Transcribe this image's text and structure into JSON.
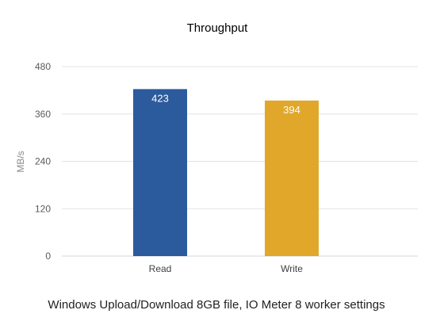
{
  "chart_data": {
    "type": "bar",
    "title": "Throughput",
    "caption": "Windows Upload/Download 8GB file, IO Meter 8 worker settings",
    "ylabel": "MB/s",
    "xlabel": "",
    "categories": [
      "Read",
      "Write"
    ],
    "values": [
      423,
      394
    ],
    "data_labels": [
      "423",
      "394"
    ],
    "ylim": [
      0,
      480
    ],
    "yticks": [
      0,
      120,
      240,
      360,
      480
    ],
    "colors": [
      "#2b5a9d",
      "#e0a72a"
    ],
    "grid": true,
    "legend": "none"
  }
}
